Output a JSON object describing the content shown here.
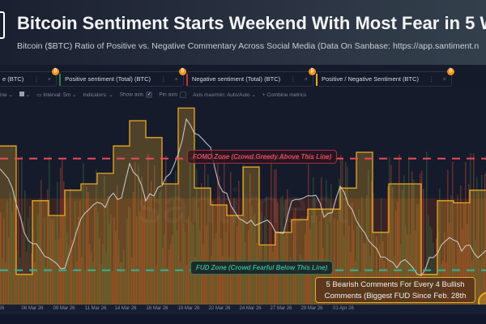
{
  "header": {
    "title": "Bitcoin Sentiment Starts Weekend With Most Fear in 5 W",
    "subtitle": "Bitcoin ($BTC) Ratio of Positive vs. Negative Commentary Across Social Media (Data On Sanbase: https://app.santiment.n"
  },
  "metric_tabs": [
    {
      "label": "e (BTC)",
      "color": "#8a8f9c"
    },
    {
      "label": "Positive sentiment (Total) (BTC)",
      "color": "#2e7d4a"
    },
    {
      "label": "Negative sentiment (Total) (BTC)",
      "color": "#c9302c"
    },
    {
      "label": "Positive / Negative Sentiment (BTC)",
      "color": "#e8a825"
    }
  ],
  "tab_badge": "₿",
  "tab_menu_icon": "kebab-menu-icon",
  "tab_close_icon": "close-icon",
  "toolbar": {
    "line_label": "ine",
    "interval_label": "Interval: 5m",
    "indicators_label": "Indicators:",
    "show_axis_label": "Show axis",
    "show_axis_checked": true,
    "pin_axis_label": "Pin axis",
    "pin_axis_checked": false,
    "axis_maxmin_label": "Axis max/min: Auto/Auto",
    "combine_label": "+ Combine metrics"
  },
  "watermark": "santiment",
  "annotations": {
    "fomo": "FOMO Zone (Crowd Greedy Above This Line)",
    "fud": "FUD Zone (Crowd Fearful Below This Line)",
    "callout_line1": "5 Bearish Comments For Every 4 Bullish",
    "callout_line2": "Comments (Biggest FUD Since Feb. 28th"
  },
  "colors": {
    "background": "#161b2c",
    "ratio_step": "#e8a825",
    "price_line": "#d9d9d9",
    "positive": "#2e7d4a",
    "negative": "#c9302c",
    "fomo_line": "#e84a5a",
    "fud_line": "#2fb59a"
  },
  "chart_data": {
    "type": "area",
    "x_tick_labels": [
      "26",
      "06 Mar 26",
      "09 Mar 26",
      "11 Mar 26",
      "14 Mar 26",
      "16 Mar 26",
      "19 Mar 26",
      "22 Mar 26",
      "24 Mar 26",
      "27 Mar 26",
      "29 Mar 26",
      "01 Apr 26"
    ],
    "grid": false,
    "series": [
      {
        "type": "step",
        "values": [
          73,
          12,
          47,
          40,
          52,
          55,
          60,
          73,
          85,
          77,
          55,
          91,
          53,
          45,
          40,
          63,
          26,
          32,
          38,
          43,
          43,
          53,
          70,
          32,
          55,
          55,
          12,
          47,
          46,
          52
        ]
      },
      {
        "type": "line",
        "values": [
          62,
          58,
          46,
          31,
          27,
          23,
          19,
          17,
          15,
          27,
          38,
          42,
          46,
          44,
          50,
          48,
          65,
          58,
          48,
          50,
          54,
          60,
          69,
          85,
          79,
          77,
          73,
          54,
          50,
          42,
          38,
          37,
          35,
          38,
          33,
          31,
          46,
          48,
          50,
          50,
          40,
          42,
          54,
          46,
          38,
          31,
          27,
          21,
          19,
          15,
          19,
          15,
          12,
          19,
          23,
          27,
          29,
          23,
          27,
          19,
          23
        ]
      }
    ],
    "thresholds": {
      "fomo": 67,
      "fud": 14
    }
  }
}
